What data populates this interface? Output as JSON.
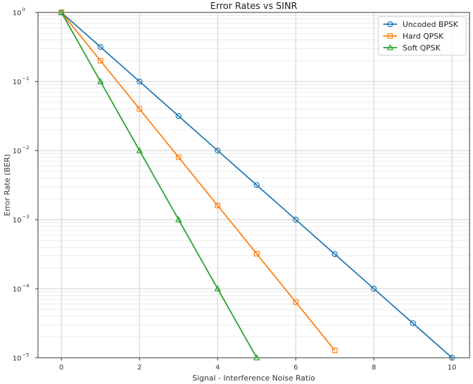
{
  "chart_data": {
    "type": "line",
    "title": "Error Rates vs SINR",
    "xlabel": "Signal - Interference Noise Ratio",
    "ylabel": "Error Rate (BER)",
    "xlim": [
      -0.6,
      10.45
    ],
    "ylim": [
      1e-05,
      1
    ],
    "yscale": "log",
    "xticks": [
      0,
      2,
      4,
      6,
      8,
      10
    ],
    "yticks": [
      {
        "value": 1,
        "base": "10",
        "exp": "0"
      },
      {
        "value": 0.1,
        "base": "10",
        "exp": "−1"
      },
      {
        "value": 0.01,
        "base": "10",
        "exp": "−2"
      },
      {
        "value": 0.001,
        "base": "10",
        "exp": "−3"
      },
      {
        "value": 0.0001,
        "base": "10",
        "exp": "−4"
      },
      {
        "value": 1e-05,
        "base": "10",
        "exp": "−5"
      }
    ],
    "grid": true,
    "legend_position": "top-right",
    "series": [
      {
        "name": "Uncoded BPSK",
        "color": "#1f77b4",
        "marker": "circle",
        "x": [
          0,
          1,
          2,
          3,
          4,
          5,
          6,
          7,
          8,
          9,
          10
        ],
        "y": [
          1,
          0.316,
          0.1,
          0.0316,
          0.01,
          0.00316,
          0.001,
          0.000316,
          0.0001,
          3.16e-05,
          1e-05
        ]
      },
      {
        "name": "Hard QPSK",
        "color": "#ff7f0e",
        "marker": "square",
        "x": [
          0,
          1,
          2,
          3,
          4,
          5,
          6,
          7
        ],
        "y": [
          1,
          0.2,
          0.04,
          0.008,
          0.0016,
          0.00032,
          6.4e-05,
          1.28e-05
        ]
      },
      {
        "name": "Soft QPSK",
        "color": "#2ca02c",
        "marker": "triangle",
        "x": [
          0,
          1,
          2,
          3,
          4,
          5
        ],
        "y": [
          1,
          0.1,
          0.01,
          0.001,
          0.0001,
          1e-05
        ]
      }
    ]
  }
}
